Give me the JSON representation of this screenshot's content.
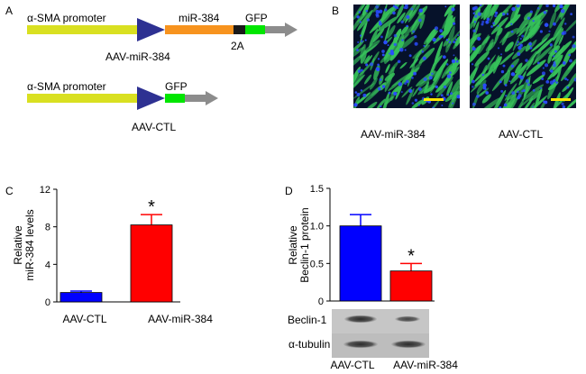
{
  "panels": {
    "a": {
      "letter": "A",
      "construct1": {
        "promoter": "α-SMA promoter",
        "insert": "miR-384",
        "linker": "2A",
        "reporter": "GFP",
        "name": "AAV-miR-384"
      },
      "construct2": {
        "promoter": "α-SMA promoter",
        "reporter": "GFP",
        "name": "AAV-CTL"
      },
      "colors": {
        "promoter": "#d9e021",
        "arrowhead": "#2e3192",
        "insert": "#f7931e",
        "linker": "#1a1a1a",
        "gfp": "#00e600",
        "tail": "#8c8c8c"
      }
    },
    "b": {
      "letter": "B",
      "image1_label": "AAV-miR-384",
      "image2_label": "AAV-CTL",
      "colors": {
        "background": "#06122a",
        "cells": "#36c25a",
        "nuclei": "#2a4dff",
        "scale_bar": "#ffe600"
      }
    }
  },
  "chart_data": [
    {
      "panel": "C",
      "type": "bar",
      "ylabel": [
        "Relative",
        "miR-384 levels"
      ],
      "categories": [
        "AAV-CTL",
        "AAV-miR-384"
      ],
      "values": [
        1.0,
        8.2
      ],
      "errors": [
        0.15,
        1.1
      ],
      "colors": [
        "#0000ff",
        "#ff0000"
      ],
      "significance": [
        "",
        "*"
      ],
      "ylim": [
        0,
        12
      ],
      "yticks": [
        0,
        4,
        8,
        12
      ]
    },
    {
      "panel": "D",
      "type": "bar",
      "ylabel": [
        "Relative",
        "Beclin-1 protein"
      ],
      "categories": [
        "AAV-CTL",
        "AAV-miR-384"
      ],
      "values": [
        1.0,
        0.4
      ],
      "errors": [
        0.15,
        0.1
      ],
      "colors": [
        "#0000ff",
        "#ff0000"
      ],
      "significance": [
        "",
        "*"
      ],
      "ylim": [
        0,
        1.5
      ],
      "yticks": [
        "0",
        "0.5",
        "1.0",
        "1.5"
      ],
      "blot_labels": [
        "Beclin-1",
        "α-tubulin"
      ]
    }
  ]
}
